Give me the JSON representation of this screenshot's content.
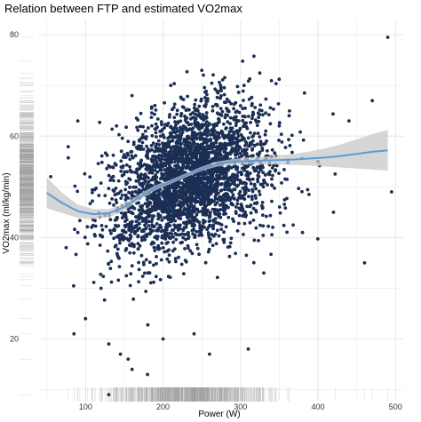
{
  "chart_data": {
    "type": "scatter",
    "title": "Relation between FTP and estimated VO2max",
    "xlabel": "Power (W)",
    "ylabel": "VO2max (ml/kg/min)",
    "xlim": [
      40,
      510
    ],
    "ylim": [
      8,
      83
    ],
    "x_ticks": [
      100,
      200,
      300,
      400,
      500
    ],
    "y_ticks": [
      20,
      40,
      60,
      80
    ],
    "grid": true,
    "rug": true,
    "colors": {
      "points": "#1b2f55",
      "smooth_line": "#5b9bd5",
      "band": "#c8c8c8",
      "grid": "#e6e6e6",
      "rug": "#999999"
    },
    "scatter_summary": {
      "n_points_approx": 3000,
      "center": [
        235,
        51
      ],
      "note_values": "estimated cloud"
    },
    "outliers": [
      {
        "x": 490,
        "y": 79.5
      },
      {
        "x": 250,
        "y": 73
      },
      {
        "x": 160,
        "y": 68
      },
      {
        "x": 210,
        "y": 70
      },
      {
        "x": 90,
        "y": 63
      },
      {
        "x": 140,
        "y": 62
      },
      {
        "x": 470,
        "y": 67
      },
      {
        "x": 440,
        "y": 63
      },
      {
        "x": 495,
        "y": 49
      },
      {
        "x": 460,
        "y": 35
      },
      {
        "x": 55,
        "y": 52
      },
      {
        "x": 85,
        "y": 21
      },
      {
        "x": 100,
        "y": 24
      },
      {
        "x": 130,
        "y": 19
      },
      {
        "x": 145,
        "y": 17
      },
      {
        "x": 155,
        "y": 16
      },
      {
        "x": 180,
        "y": 13
      },
      {
        "x": 160,
        "y": 14
      },
      {
        "x": 130,
        "y": 9
      },
      {
        "x": 260,
        "y": 17
      },
      {
        "x": 310,
        "y": 18
      },
      {
        "x": 240,
        "y": 21
      },
      {
        "x": 200,
        "y": 20
      },
      {
        "x": 380,
        "y": 41
      },
      {
        "x": 400,
        "y": 55
      },
      {
        "x": 420,
        "y": 45
      },
      {
        "x": 350,
        "y": 62
      },
      {
        "x": 300,
        "y": 66
      },
      {
        "x": 120,
        "y": 30
      },
      {
        "x": 75,
        "y": 38
      },
      {
        "x": 90,
        "y": 41
      },
      {
        "x": 330,
        "y": 33
      }
    ],
    "smooth_line": [
      {
        "x": 50,
        "y": 48.8
      },
      {
        "x": 70,
        "y": 46.8
      },
      {
        "x": 90,
        "y": 45.2
      },
      {
        "x": 110,
        "y": 44.6
      },
      {
        "x": 130,
        "y": 44.8
      },
      {
        "x": 150,
        "y": 46.0
      },
      {
        "x": 170,
        "y": 48.0
      },
      {
        "x": 190,
        "y": 49.8
      },
      {
        "x": 210,
        "y": 51.0
      },
      {
        "x": 230,
        "y": 52.3
      },
      {
        "x": 250,
        "y": 53.6
      },
      {
        "x": 270,
        "y": 54.5
      },
      {
        "x": 290,
        "y": 54.9
      },
      {
        "x": 310,
        "y": 55.1
      },
      {
        "x": 330,
        "y": 55.2
      },
      {
        "x": 350,
        "y": 55.3
      },
      {
        "x": 370,
        "y": 55.4
      },
      {
        "x": 390,
        "y": 55.6
      },
      {
        "x": 410,
        "y": 55.8
      },
      {
        "x": 430,
        "y": 56.1
      },
      {
        "x": 450,
        "y": 56.5
      },
      {
        "x": 470,
        "y": 56.9
      },
      {
        "x": 490,
        "y": 57.2
      }
    ],
    "confidence_band": [
      {
        "x": 50,
        "lo": 45.8,
        "hi": 51.8
      },
      {
        "x": 70,
        "lo": 44.8,
        "hi": 48.8
      },
      {
        "x": 90,
        "lo": 43.9,
        "hi": 46.5
      },
      {
        "x": 110,
        "lo": 43.6,
        "hi": 45.6
      },
      {
        "x": 130,
        "lo": 44.0,
        "hi": 45.6
      },
      {
        "x": 150,
        "lo": 45.3,
        "hi": 46.7
      },
      {
        "x": 170,
        "lo": 47.4,
        "hi": 48.6
      },
      {
        "x": 190,
        "lo": 49.3,
        "hi": 50.3
      },
      {
        "x": 210,
        "lo": 50.6,
        "hi": 51.4
      },
      {
        "x": 230,
        "lo": 51.9,
        "hi": 52.7
      },
      {
        "x": 250,
        "lo": 53.2,
        "hi": 54.0
      },
      {
        "x": 270,
        "lo": 54.0,
        "hi": 55.0
      },
      {
        "x": 290,
        "lo": 54.3,
        "hi": 55.5
      },
      {
        "x": 310,
        "lo": 54.4,
        "hi": 55.8
      },
      {
        "x": 330,
        "lo": 54.4,
        "hi": 56.0
      },
      {
        "x": 350,
        "lo": 54.4,
        "hi": 56.2
      },
      {
        "x": 370,
        "lo": 54.3,
        "hi": 56.5
      },
      {
        "x": 390,
        "lo": 54.2,
        "hi": 57.0
      },
      {
        "x": 410,
        "lo": 54.0,
        "hi": 57.6
      },
      {
        "x": 430,
        "lo": 53.8,
        "hi": 58.4
      },
      {
        "x": 450,
        "lo": 53.6,
        "hi": 59.4
      },
      {
        "x": 470,
        "lo": 53.4,
        "hi": 60.4
      },
      {
        "x": 490,
        "lo": 53.2,
        "hi": 61.2
      }
    ]
  }
}
